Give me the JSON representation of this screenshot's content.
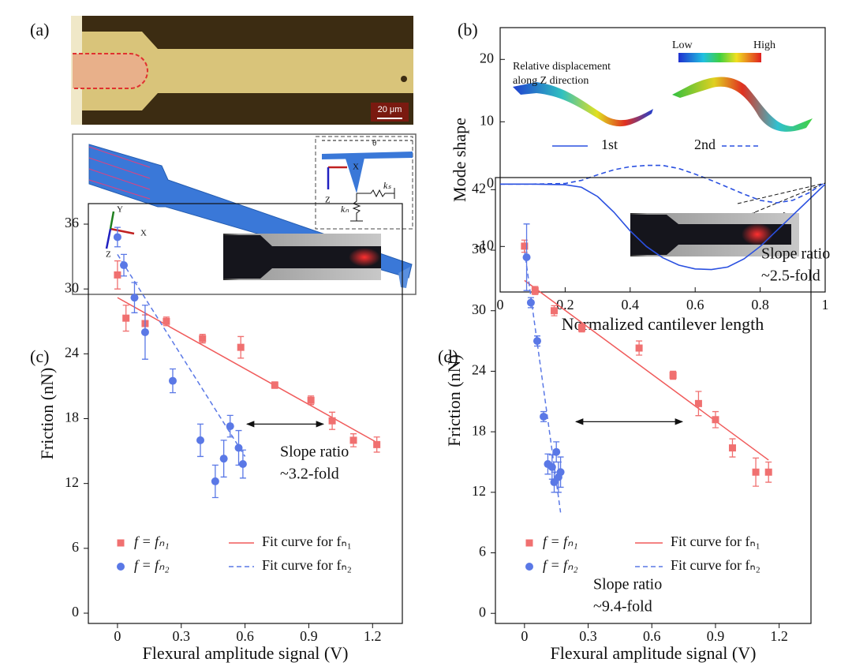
{
  "panel_a": {
    "panel_label": "(a)",
    "scale_bar": "20 μm",
    "axes": [
      "Y",
      "X",
      "Z"
    ],
    "inset_axes": [
      "X",
      "Z"
    ],
    "springs": [
      "kₛ",
      "kₙ"
    ],
    "angle": "θ"
  },
  "chart_data": [
    {
      "type": "line",
      "panel_label": "(b)",
      "x_label": "Normalized cantilever length",
      "y_label": "Mode shape",
      "xlim": [
        0,
        1
      ],
      "ylim": [
        -17.3,
        25.1
      ],
      "xticks": [
        0,
        0.2,
        0.4,
        0.6,
        0.8,
        1
      ],
      "yticks": [
        -10,
        0,
        10,
        20
      ],
      "x": [
        0,
        0.1,
        0.2,
        0.25,
        0.3,
        0.35,
        0.4,
        0.45,
        0.5,
        0.55,
        0.6,
        0.65,
        0.7,
        0.75,
        0.8,
        0.85,
        0.9,
        0.95,
        1
      ],
      "series": [
        {
          "name": "1st",
          "color": "#2a50e0",
          "dash": "solid",
          "values": [
            0,
            0,
            -0.1,
            -0.5,
            -2,
            -4.5,
            -7.5,
            -10,
            -11.8,
            -13,
            -13.6,
            -13.7,
            -13.3,
            -12,
            -10,
            -7.5,
            -5,
            -2.5,
            0
          ]
        },
        {
          "name": "2nd",
          "color": "#2a50e0",
          "dash": "dashed",
          "values": [
            0,
            0,
            0.1,
            0.6,
            1.5,
            2.3,
            2.8,
            3.0,
            3.0,
            2.5,
            1.6,
            0.6,
            -0.5,
            -1.6,
            -2.6,
            -3.0,
            -2.6,
            -1.4,
            0.3
          ]
        }
      ],
      "inset_text": [
        "Relative displacement",
        "along Z direction"
      ],
      "colorbar_labels": [
        "Low",
        "High"
      ],
      "annotation": [
        "Slope ratio",
        "~2.5-fold"
      ]
    },
    {
      "type": "scatter",
      "panel_label": "(c)",
      "x_label": "Flexural amplitude signal (V)",
      "y_label": "Friction (nN)",
      "xlim": [
        -0.137,
        1.34
      ],
      "ylim": [
        -0.95,
        37.9
      ],
      "xticks": [
        0,
        0.3,
        0.6,
        0.9,
        1.2
      ],
      "yticks": [
        0,
        6,
        12,
        18,
        24,
        30,
        36
      ],
      "series": [
        {
          "name": "f = fₙ₁",
          "color": "#f07070",
          "marker": "square",
          "x": [
            0,
            0.04,
            0.13,
            0.23,
            0.4,
            0.58,
            0.74,
            0.91,
            1.01,
            1.11,
            1.22
          ],
          "values": [
            31.3,
            27.3,
            26.8,
            27,
            25.4,
            24.6,
            21.1,
            19.7,
            17.8,
            16,
            15.6
          ],
          "errors": [
            1.3,
            1.2,
            0.8,
            0.4,
            0.4,
            1.0,
            0.3,
            0.4,
            0.8,
            0.6,
            0.7
          ]
        },
        {
          "name": "f = fₙ₂",
          "color": "#5a78e6",
          "marker": "circle",
          "x": [
            0,
            0.03,
            0.08,
            0.13,
            0.26,
            0.39,
            0.46,
            0.5,
            0.53,
            0.57,
            0.59
          ],
          "values": [
            34.8,
            32.2,
            29.2,
            26,
            21.5,
            16,
            12.2,
            14.3,
            17.3,
            15.3,
            13.8
          ],
          "errors": [
            0.9,
            1.0,
            1.4,
            2.5,
            1.1,
            1.5,
            1.5,
            1.7,
            1.0,
            1.6,
            1.3
          ]
        }
      ],
      "fits": [
        {
          "name": "Fit curve for fₙ₁",
          "color": "#f05a5a",
          "dash": "solid",
          "x": [
            0,
            1.22
          ],
          "values": [
            29.2,
            15.8
          ]
        },
        {
          "name": "Fit curve for fₙ₂",
          "color": "#5a78e6",
          "dash": "dashed",
          "x": [
            0,
            0.6
          ],
          "values": [
            33.2,
            14.5
          ]
        }
      ],
      "annotation": [
        "Slope ratio",
        "~3.2-fold"
      ]
    },
    {
      "type": "scatter",
      "panel_label": "(d)",
      "x_label": "Flexural amplitude signal (V)",
      "y_label": "Friction (nN)",
      "xlim": [
        -0.137,
        1.35
      ],
      "ylim": [
        -1.0,
        43.2
      ],
      "xticks": [
        0,
        0.3,
        0.6,
        0.9,
        1.2
      ],
      "yticks": [
        0,
        6,
        12,
        18,
        24,
        30,
        36,
        42
      ],
      "series": [
        {
          "name": "f = fₙ₁",
          "color": "#f07070",
          "marker": "square",
          "x": [
            0,
            0.05,
            0.14,
            0.27,
            0.54,
            0.7,
            0.82,
            0.9,
            0.98,
            1.09,
            1.15
          ],
          "values": [
            36.4,
            32,
            30,
            28.3,
            26.3,
            23.6,
            20.8,
            19.2,
            16.4,
            14,
            14
          ],
          "errors": [
            0.6,
            0.4,
            0.5,
            0.4,
            0.7,
            0.4,
            1.2,
            0.8,
            0.9,
            1.4,
            1.0
          ]
        },
        {
          "name": "f = fₙ₂",
          "color": "#5a78e6",
          "marker": "circle",
          "x": [
            0.01,
            0.03,
            0.06,
            0.09,
            0.11,
            0.13,
            0.14,
            0.15,
            0.16,
            0.17
          ],
          "values": [
            35.3,
            30.8,
            27,
            19.5,
            14.8,
            14.5,
            13,
            16,
            13.5,
            14
          ],
          "errors": [
            3.3,
            0.5,
            0.5,
            0.5,
            1.0,
            1.2,
            1.0,
            1.0,
            1.5,
            1.5
          ]
        }
      ],
      "fits": [
        {
          "name": "Fit curve for fₙ₁",
          "color": "#f05a5a",
          "dash": "solid",
          "x": [
            0,
            1.15
          ],
          "values": [
            33,
            15.2
          ]
        },
        {
          "name": "Fit curve for fₙ₂",
          "color": "#5a78e6",
          "dash": "dashed",
          "x": [
            0,
            0.17
          ],
          "values": [
            36,
            10
          ]
        }
      ],
      "annotation": [
        "Slope ratio",
        "~9.4-fold"
      ]
    }
  ]
}
